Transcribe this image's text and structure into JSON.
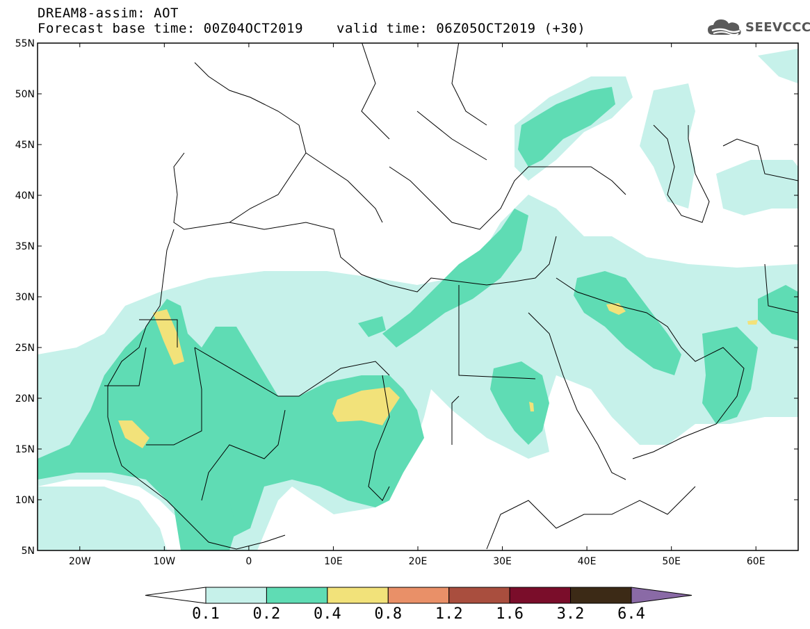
{
  "header": {
    "model_title": "DREAM8-assim: AOT",
    "base_time": "Forecast base time: 00Z04OCT2019",
    "valid_time": "valid time: 06Z05OCT2019 (+30)"
  },
  "logo": {
    "text": "SEEVCCC",
    "icon": "cloud-icon"
  },
  "map": {
    "lon_range": [
      -25,
      65
    ],
    "lat_range": [
      5,
      55
    ],
    "lat_ticks": [
      {
        "v": 55,
        "label": "55N"
      },
      {
        "v": 50,
        "label": "50N"
      },
      {
        "v": 45,
        "label": "45N"
      },
      {
        "v": 40,
        "label": "40N"
      },
      {
        "v": 35,
        "label": "35N"
      },
      {
        "v": 30,
        "label": "30N"
      },
      {
        "v": 25,
        "label": "25N"
      },
      {
        "v": 20,
        "label": "20N"
      },
      {
        "v": 15,
        "label": "15N"
      },
      {
        "v": 10,
        "label": "10N"
      },
      {
        "v": 5,
        "label": "5N"
      }
    ],
    "lon_ticks": [
      {
        "v": -20,
        "label": "20W"
      },
      {
        "v": -10,
        "label": "10W"
      },
      {
        "v": 0,
        "label": "0"
      },
      {
        "v": 10,
        "label": "10E"
      },
      {
        "v": 20,
        "label": "20E"
      },
      {
        "v": 30,
        "label": "30E"
      },
      {
        "v": 40,
        "label": "40E"
      },
      {
        "v": 50,
        "label": "50E"
      },
      {
        "v": 60,
        "label": "60E"
      }
    ],
    "colors": {
      "c01": "#c6f1ea",
      "c02": "#5fdcb4",
      "c04": "#f2e27a",
      "coast": "#000000",
      "frame": "#000000"
    }
  },
  "colorbar": {
    "labels": [
      "0.1",
      "0.2",
      "0.4",
      "0.8",
      "1.2",
      "1.6",
      "3.2",
      "6.4"
    ],
    "colors": [
      "#ffffff",
      "#c6f1ea",
      "#5fdcb4",
      "#f2e27a",
      "#e99068",
      "#a94e3e",
      "#7a0d2a",
      "#3c2a16",
      "#8a6aa6"
    ]
  }
}
